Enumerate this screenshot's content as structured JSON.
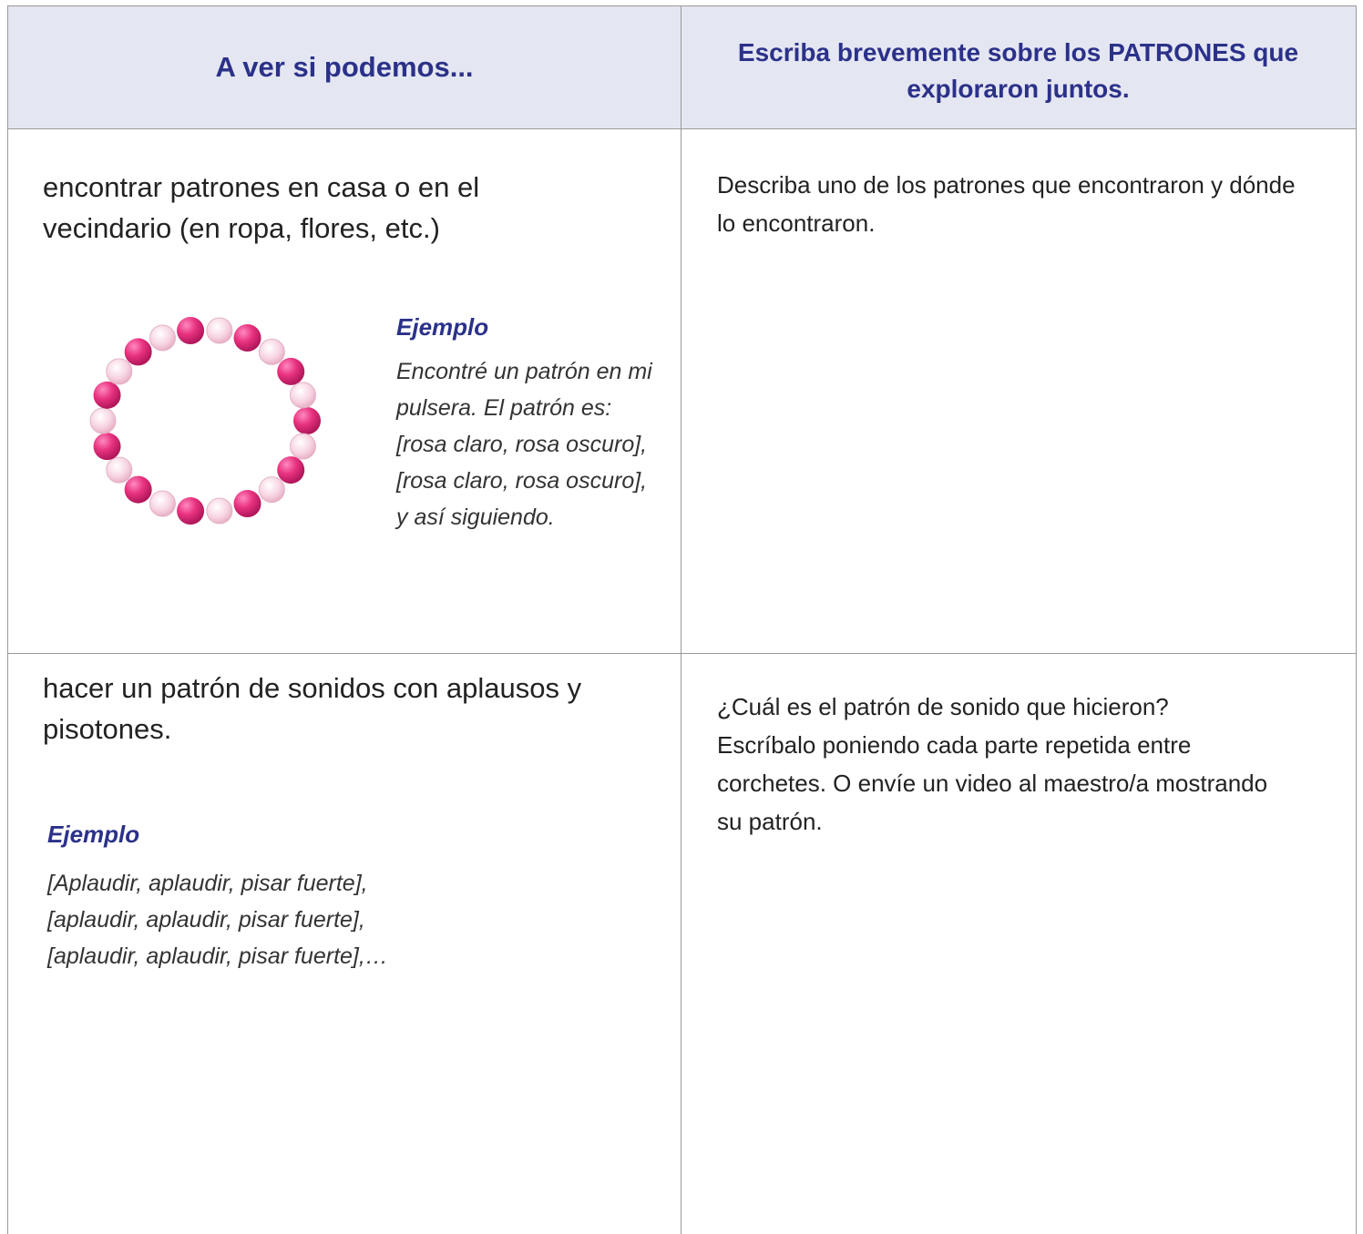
{
  "header": {
    "columns": [
      "A ver si podemos...",
      "Escriba brevemente sobre los PATRONES que exploraron juntos."
    ]
  },
  "rows": [
    {
      "activity": "encontrar patrones en casa o en el vecindario (en ropa, flores, etc.)",
      "example_label": "Ejemplo",
      "example_text": "Encontré un patrón en mi pulsera. El patrón es: [rosa claro, rosa oscuro], [rosa claro, rosa oscuro], y así siguiendo.",
      "prompt": "Describa uno de los patrones que encontraron y dónde lo encontraron."
    },
    {
      "activity": "hacer un patrón de sonidos con aplausos y pisotones.",
      "example_label": "Ejemplo",
      "example_text": "[Aplaudir, aplaudir, pisar fuerte], [aplaudir, aplaudir, pisar fuerte], [aplaudir, aplaudir, pisar fuerte],…",
      "prompt": "¿Cuál es el patrón de sonido que hicieron? Escríbalo poniendo cada parte repetida entre corchetes. O envíe un video al maestro/a mostrando su patrón."
    }
  ]
}
